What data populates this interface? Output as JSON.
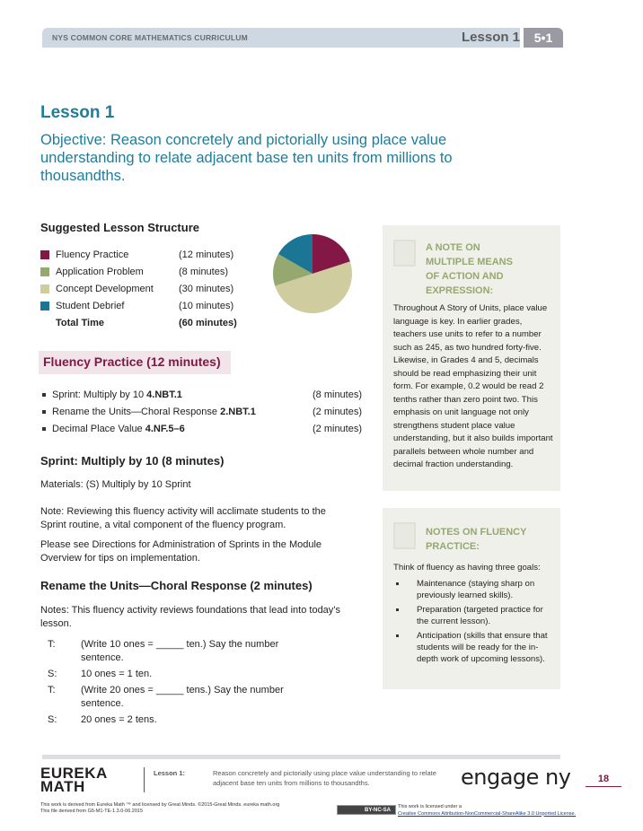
{
  "header": {
    "curriculum": "NYS COMMON CORE MATHEMATICS CURRICULUM",
    "lesson": "Lesson 1",
    "grade_module": "5•1"
  },
  "title": "Lesson 1",
  "objective": "Objective:  Reason concretely and pictorially using place value understanding to relate adjacent base ten units from millions to thousandths.",
  "structure": {
    "heading": "Suggested Lesson Structure",
    "items": [
      {
        "label": "Fluency Practice",
        "time": "(12 minutes)",
        "minutes": 12,
        "color": "#831746"
      },
      {
        "label": "Application Problem",
        "time": "(8 minutes)",
        "minutes": 8,
        "color": "#94a86f"
      },
      {
        "label": "Concept Development",
        "time": "(30 minutes)",
        "minutes": 30,
        "color": "#cfcca0"
      },
      {
        "label": "Student Debrief",
        "time": "(10 minutes)",
        "minutes": 10,
        "color": "#1b7594"
      }
    ],
    "total_label": "Total Time",
    "total_time": "(60 minutes)"
  },
  "fluency": {
    "heading": "Fluency Practice  (12 minutes)",
    "items": [
      {
        "text": "Sprint:  Multiply by 10  ",
        "code": "4.NBT.1",
        "time": "(8 minutes)"
      },
      {
        "text": "Rename the Units—Choral Response  ",
        "code": "2.NBT.1",
        "time": "(2 minutes)"
      },
      {
        "text": "Decimal Place Value  ",
        "code": "4.NF.5–6",
        "time": "(2 minutes)"
      }
    ]
  },
  "sprint": {
    "heading": "Sprint:  Multiply by 10  (8 minutes)",
    "materials": "Materials:   (S) Multiply by 10 Sprint",
    "note": "Note:  Reviewing this fluency activity will acclimate students to the Sprint routine, a vital component of the fluency program.",
    "directions": "Please see Directions for Administration of Sprints in the Module Overview for tips on implementation."
  },
  "rename": {
    "heading": "Rename the Units—Choral Response  (2 minutes)",
    "notes": "Notes:  This fluency activity reviews foundations that lead into today’s lesson.",
    "dialogue": [
      {
        "speaker": "T:",
        "text": "(Write 10 ones = _____ ten.)  Say the number sentence."
      },
      {
        "speaker": "S:",
        "text": "10 ones = 1 ten."
      },
      {
        "speaker": "T:",
        "text": "(Write 20 ones = _____ tens.)  Say the number sentence."
      },
      {
        "speaker": "S:",
        "text": "20 ones = 2 tens."
      }
    ]
  },
  "note_box1": {
    "heading": "A NOTE ON MULTIPLE MEANS OF ACTION AND EXPRESSION:",
    "body": "Throughout A Story of Units, place value language is key.  In earlier grades, teachers use units to refer to a number such as 245, as two hundred forty-five. Likewise, in Grades 4 and 5, decimals should be read emphasizing their unit form.  For example, 0.2 would be read 2 tenths rather than zero point two. This emphasis on unit language not only strengthens student place value understanding, but it also builds important parallels between whole number and decimal fraction understanding."
  },
  "note_box2": {
    "heading": "NOTES ON FLUENCY PRACTICE:",
    "intro": "Think of fluency as having three goals:",
    "items": [
      "Maintenance (staying sharp on previously learned skills).",
      "Preparation (targeted practice for the current lesson).",
      "Anticipation (skills that ensure that students will be ready for the in-depth work of upcoming lessons)."
    ]
  },
  "footer": {
    "logo": "EUREKA MATH",
    "lesson_label": "Lesson 1:",
    "lesson_desc": "Reason concretely and pictorially using place value understanding to relate adjacent base ten units from millions to thousandths.",
    "engage_logo": "engage ny",
    "page": "18",
    "credit1": "This work is derived from Eureka Math ™ and licensed by Great Minds. ©2015-Great Minds. eureka math.org",
    "credit2": "This file derived from G5-M1-TE-1.3.0-06.2015",
    "cc_badge": "BY-NC-SA",
    "license_intro": "This work is licensed under a",
    "license_link": "Creative Commons Attribution-NonCommercial-ShareAlike 3.0 Unported License."
  }
}
